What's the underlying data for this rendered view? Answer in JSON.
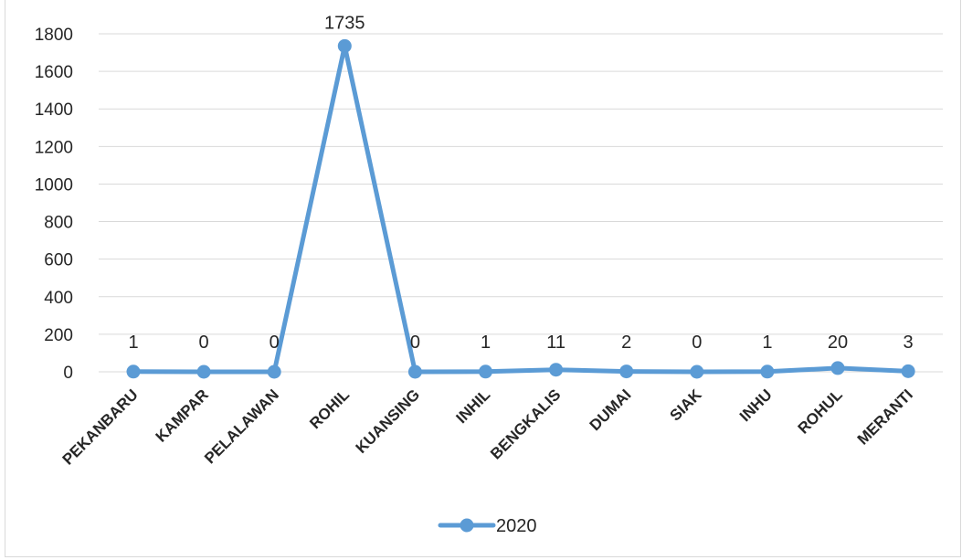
{
  "chart_data": {
    "type": "line",
    "categories": [
      "PEKANBARU",
      "KAMPAR",
      "PELALAWAN",
      "ROHIL",
      "KUANSING",
      "INHIL",
      "BENGKALIS",
      "DUMAI",
      "SIAK",
      "INHU",
      "ROHUL",
      "MERANTI"
    ],
    "series": [
      {
        "name": "2020",
        "values": [
          1,
          0,
          0,
          1735,
          0,
          1,
          11,
          2,
          0,
          1,
          20,
          3
        ],
        "color": "#5b9bd5"
      }
    ],
    "data_labels": [
      "1",
      "0",
      "0",
      "1735",
      "0",
      "1",
      "11",
      "2",
      "0",
      "1",
      "20",
      "3"
    ],
    "ylim": [
      0,
      1800
    ],
    "yticks": [
      0,
      200,
      400,
      600,
      800,
      1000,
      1200,
      1400,
      1600,
      1800
    ],
    "grid": true,
    "legend_position": "bottom",
    "title": "",
    "xlabel": "",
    "ylabel": ""
  }
}
